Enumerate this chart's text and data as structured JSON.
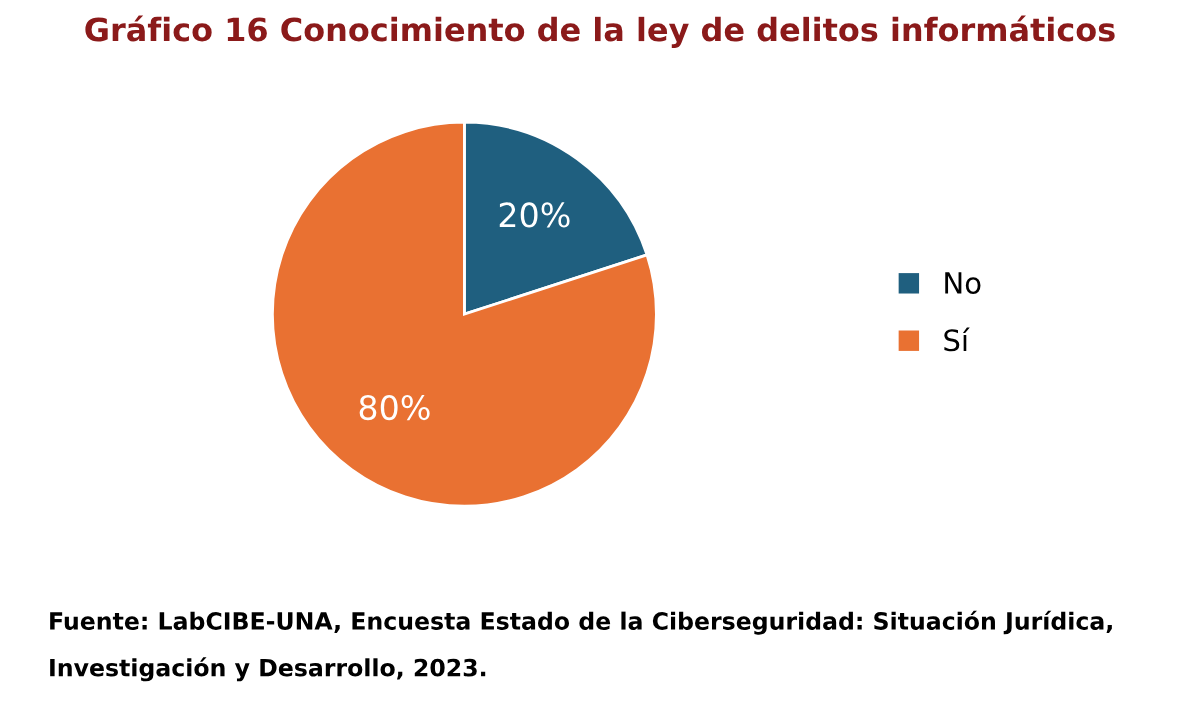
{
  "chart_data": {
    "type": "pie",
    "title": "Gráfico 16 Conocimiento de la ley de delitos informáticos",
    "categories": [
      "No",
      "Sí"
    ],
    "values": [
      20,
      80
    ],
    "value_labels": [
      "20%",
      "80%"
    ],
    "colors": [
      "#1f5f7f",
      "#e97132"
    ],
    "legend": "right",
    "annotations": [
      "Fuente: LabCIBE-UNA, Encuesta Estado de la Ciberseguridad: Situación Jurídica, Investigación y Desarrollo, 2023."
    ]
  }
}
